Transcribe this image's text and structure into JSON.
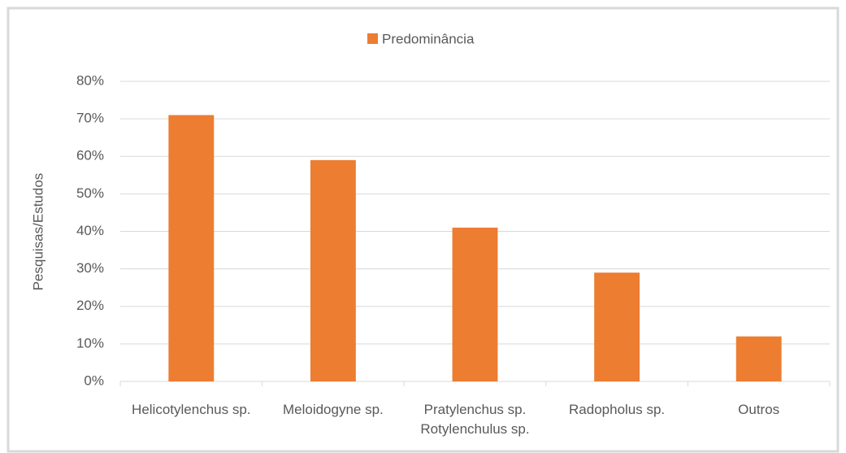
{
  "chart_data": {
    "type": "bar",
    "legend": "Predominância",
    "y_label": "Pesquisas/Estudos",
    "categories": [
      "Helicotylenchus sp.",
      "Meloidogyne sp.",
      "Pratylenchus sp. Rotylenchulus sp.",
      "Radopholus sp.",
      "Outros"
    ],
    "values": [
      71,
      59,
      41,
      29,
      12
    ],
    "color": "#ed7d31",
    "ylim": [
      0,
      80
    ],
    "yticks": [
      {
        "value": 0,
        "label": "0%"
      },
      {
        "value": 10,
        "label": "10%"
      },
      {
        "value": 20,
        "label": "20%"
      },
      {
        "value": 30,
        "label": "30%"
      },
      {
        "value": 40,
        "label": "40%"
      },
      {
        "value": 50,
        "label": "50%"
      },
      {
        "value": 60,
        "label": "60%"
      },
      {
        "value": 70,
        "label": "70%"
      },
      {
        "value": 80,
        "label": "80%"
      }
    ],
    "grid": true
  }
}
